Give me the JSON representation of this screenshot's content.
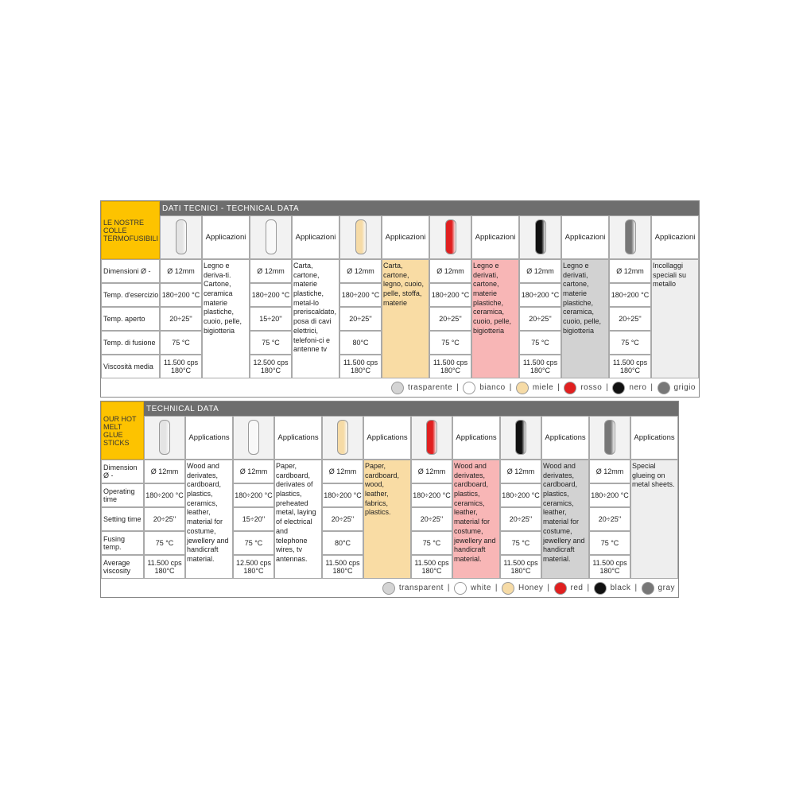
{
  "tables": [
    {
      "corner": "LE NOSTRE COLLE TERMOFUSIBILI",
      "title": "DATI TECNICI - TECHNICAL DATA",
      "app_header": "Applicazioni",
      "row_labels": [
        "Dimensioni Ø -",
        "Temp. d'esercizio",
        "Temp. aperto",
        "Temp. di fusione",
        "Viscosità media"
      ],
      "products": [
        {
          "stick_color": "#e4e4e4",
          "app_bg": "#ffffff",
          "values": [
            "Ø 12mm",
            "180÷200 °C",
            "20÷25''",
            "75 °C",
            "11.500 cps\n180°C"
          ],
          "application": "Legno e deriva-ti. Cartone, ceramica materie plastiche, cuoio, pelle, bigiotteria"
        },
        {
          "stick_color": "#f8f8f8",
          "app_bg": "#ffffff",
          "values": [
            "Ø 12mm",
            "180÷200 °C",
            "15÷20''",
            "75 °C",
            "12.500 cps\n180°C"
          ],
          "application": "Carta, cartone, materie plastiche, metal-lo preriscaldato, posa di cavi elettrici, telefoni-ci e antenne tv"
        },
        {
          "stick_color": "#f6dba6",
          "app_bg": "#f9dca4",
          "values": [
            "Ø 12mm",
            "180÷200 °C",
            "20÷25''",
            "80°C",
            "11.500 cps\n180°C"
          ],
          "application": "Carta, cartone, legno, cuoio, pelle, stoffa, materie"
        },
        {
          "stick_color": "#e02020",
          "app_bg": "#f8b6b6",
          "values": [
            "Ø 12mm",
            "180÷200 °C",
            "20÷25''",
            "75 °C",
            "11.500 cps\n180°C"
          ],
          "application": "Legno e derivati, cartone, materie plastiche, ceramica, cuoio, pelle, bigiotteria"
        },
        {
          "stick_color": "#111111",
          "app_bg": "#d2d2d2",
          "values": [
            "Ø 12mm",
            "180÷200 °C",
            "20÷25''",
            "75 °C",
            "11.500 cps\n180°C"
          ],
          "application": "Legno e derivati, cartone, materie plastiche, ceramica, cuoio, pelle, bigiotteria"
        },
        {
          "stick_color": "#777777",
          "app_bg": "#eeeeee",
          "values": [
            "Ø 12mm",
            "180÷200 °C",
            "20÷25''",
            "75 °C",
            "11.500 cps\n180°C"
          ],
          "application": "Incollaggi speciali su metallo"
        }
      ],
      "legend": {
        "separator": "|",
        "items": [
          {
            "name": "trasparente",
            "color": "#d4d4d4"
          },
          {
            "name": "bianco",
            "color": "#ffffff"
          },
          {
            "name": "miele",
            "color": "#f6dba6"
          },
          {
            "name": "rosso",
            "color": "#e02020"
          },
          {
            "name": "nero",
            "color": "#111111"
          },
          {
            "name": "grigio",
            "color": "#777777"
          }
        ]
      }
    },
    {
      "corner": "OUR HOT MELT GLUE STICKS",
      "title": "TECHNICAL DATA",
      "app_header": "Applications",
      "row_labels": [
        "Dimension Ø -",
        "Operating time",
        "Setting time",
        "Fusing temp.",
        "Average viscosity"
      ],
      "products": [
        {
          "stick_color": "#e4e4e4",
          "app_bg": "#ffffff",
          "values": [
            "Ø 12mm",
            "180÷200 °C",
            "20÷25''",
            "75 °C",
            "11.500 cps\n180°C"
          ],
          "application": "Wood and derivates, cardboard, plastics, ceramics, leather, material for costume, jewellery and handicraft material."
        },
        {
          "stick_color": "#f8f8f8",
          "app_bg": "#ffffff",
          "values": [
            "Ø 12mm",
            "180÷200 °C",
            "15÷20''",
            "75 °C",
            "12.500 cps\n180°C"
          ],
          "application": "Paper, cardboard, derivates of plastics, preheated metal, laying of electrical and telephone wires, tv antennas."
        },
        {
          "stick_color": "#f6dba6",
          "app_bg": "#f9dca4",
          "values": [
            "Ø 12mm",
            "180÷200 °C",
            "20÷25''",
            "80°C",
            "11.500 cps\n180°C"
          ],
          "application": "Paper, cardboard, wood, leather, fabrics, plastics."
        },
        {
          "stick_color": "#e02020",
          "app_bg": "#f8b6b6",
          "values": [
            "Ø 12mm",
            "180÷200 °C",
            "20÷25''",
            "75 °C",
            "11.500 cps\n180°C"
          ],
          "application": "Wood and derivates, cardboard, plastics, ceramics, leather, material for costume, jewellery and handicraft material."
        },
        {
          "stick_color": "#111111",
          "app_bg": "#d2d2d2",
          "values": [
            "Ø 12mm",
            "180÷200 °C",
            "20÷25''",
            "75 °C",
            "11.500 cps\n180°C"
          ],
          "application": "Wood and derivates, cardboard, plastics, ceramics, leather, material for costume, jewellery and handicraft material."
        },
        {
          "stick_color": "#777777",
          "app_bg": "#eeeeee",
          "values": [
            "Ø 12mm",
            "180÷200 °C",
            "20÷25''",
            "75 °C",
            "11.500 cps\n180°C"
          ],
          "application": "Special glueing on metal sheets."
        }
      ],
      "legend": {
        "separator": "|",
        "items": [
          {
            "name": "transparent",
            "color": "#d4d4d4"
          },
          {
            "name": "white",
            "color": "#ffffff"
          },
          {
            "name": "Honey",
            "color": "#f6dba6"
          },
          {
            "name": "red",
            "color": "#e02020"
          },
          {
            "name": "black",
            "color": "#111111"
          },
          {
            "name": "gray",
            "color": "#777777"
          }
        ]
      }
    }
  ]
}
